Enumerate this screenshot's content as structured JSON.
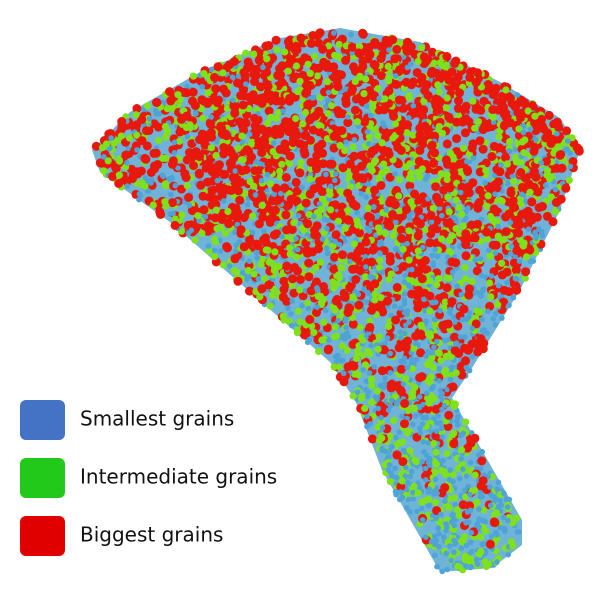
{
  "legend": {
    "items": [
      {
        "label": "Smallest grains",
        "color": "#4472c4"
      },
      {
        "label": "Intermediate grains",
        "color": "#22c81a"
      },
      {
        "label": "Biggest grains",
        "color": "#e00000"
      }
    ]
  }
}
